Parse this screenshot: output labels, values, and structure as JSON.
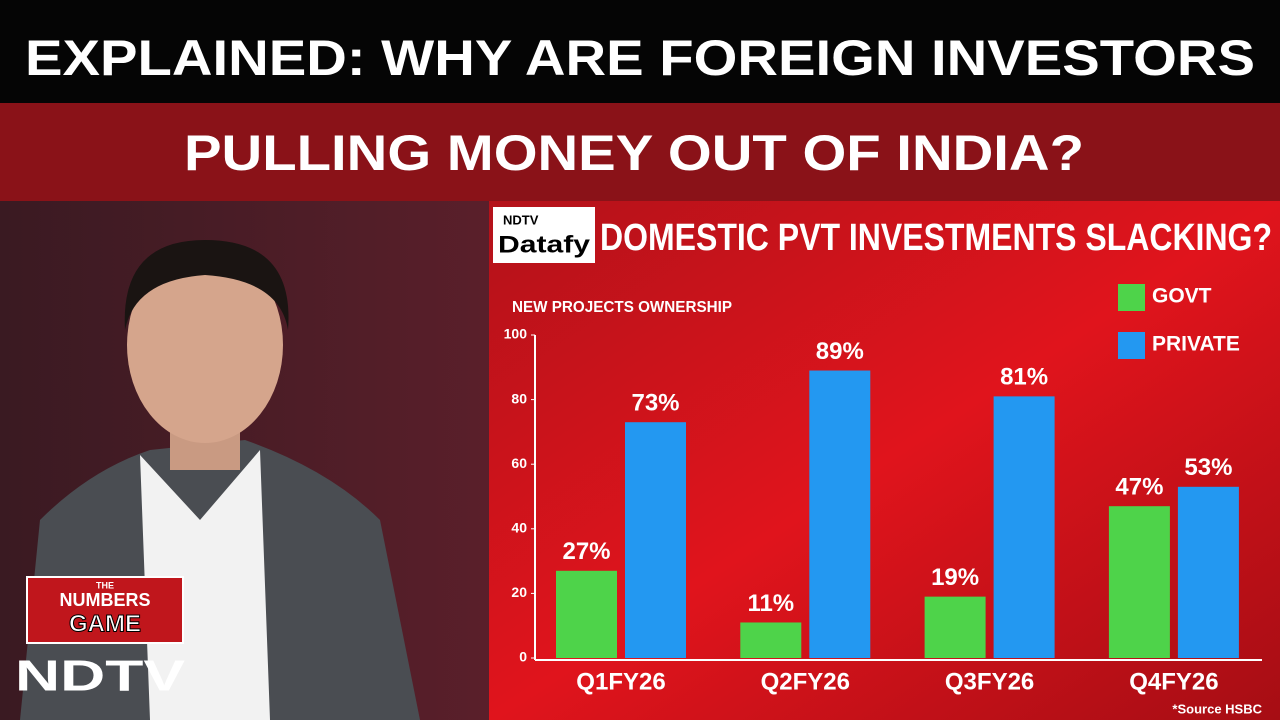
{
  "headline": {
    "line1": "EXPLAINED: WHY ARE FOREIGN INVESTORS",
    "line2": "PULLING MONEY OUT OF INDIA?"
  },
  "branding": {
    "show_the": "THE",
    "show_numbers": "NUMBERS",
    "show_game": "GAME",
    "channel": "NDTV",
    "datafy_top": "NDTV",
    "datafy_bottom": "Datafy"
  },
  "chart_data": {
    "type": "bar",
    "title": "DOMESTIC PVT INVESTMENTS SLACKING?",
    "y_label": "NEW PROJECTS OWNERSHIP",
    "categories": [
      "Q1FY26",
      "Q2FY26",
      "Q3FY26",
      "Q4FY26"
    ],
    "series": [
      {
        "name": "GOVT",
        "color": "#4ed34a",
        "values": [
          27,
          11,
          19,
          47
        ],
        "value_labels": [
          "27%",
          "11%",
          "19%",
          "47%"
        ]
      },
      {
        "name": "PRIVATE",
        "color": "#2398f1",
        "values": [
          73,
          89,
          81,
          53
        ],
        "value_labels": [
          "73%",
          "89%",
          "81%",
          "53%"
        ]
      }
    ],
    "ylim": [
      0,
      100
    ],
    "yticks": [
      0,
      20,
      40,
      60,
      80,
      100
    ],
    "grid": false,
    "legend": "top-right",
    "source": "*Source HSBC"
  }
}
